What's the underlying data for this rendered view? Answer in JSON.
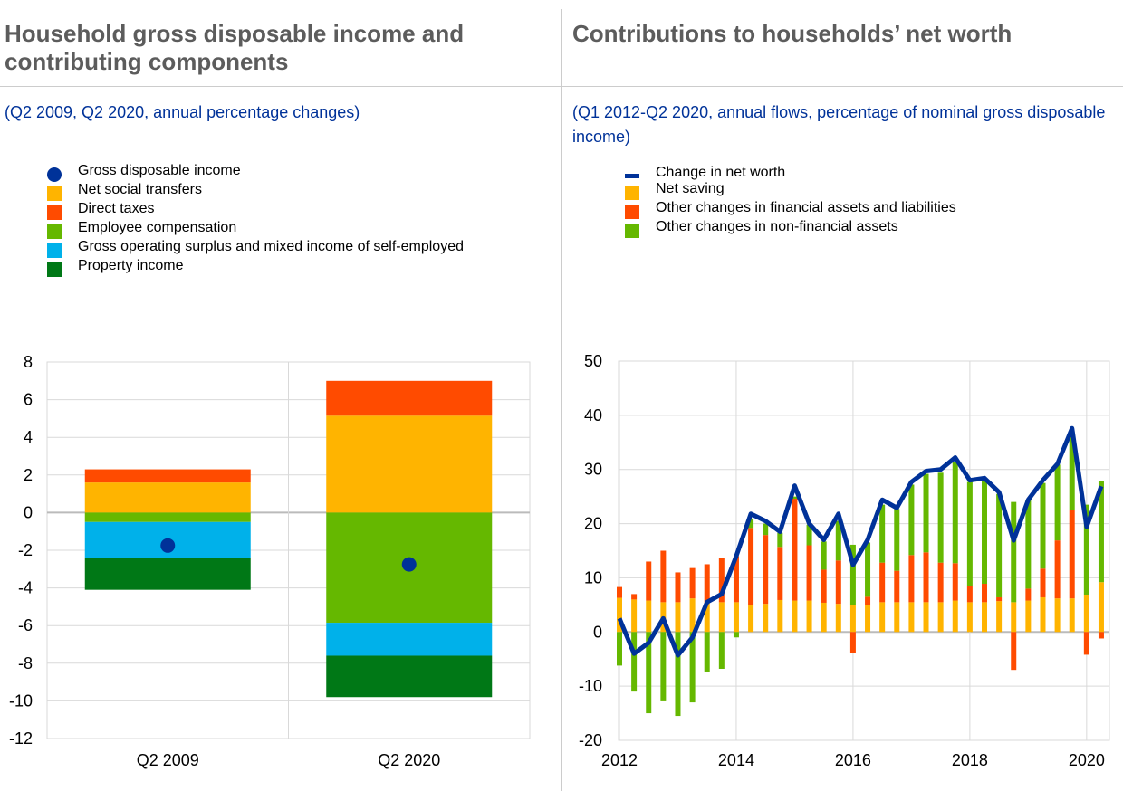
{
  "left": {
    "title": "Household gross disposable income and contributing components",
    "subtitle": "(Q2 2009, Q2 2020, annual percentage changes)"
  },
  "right": {
    "title": "Contributions to households’ net worth",
    "subtitle": "(Q1 2012-Q2 2020, annual flows, percentage of nominal gross disposable income)"
  },
  "chart_data": [
    {
      "type": "bar",
      "stacked": true,
      "categories": [
        "Q2 2009",
        "Q2 2020"
      ],
      "ylim": [
        -12,
        8
      ],
      "yticks": [
        8,
        6,
        4,
        2,
        0,
        -2,
        -4,
        -6,
        -8,
        -10,
        -12
      ],
      "grid": true,
      "legend": "top",
      "series": [
        {
          "name": "Net social transfers",
          "color": "#ffb400",
          "values": [
            1.6,
            5.15
          ]
        },
        {
          "name": "Direct taxes",
          "color": "#ff4b00",
          "values": [
            0.7,
            1.85
          ]
        },
        {
          "name": "Employee compensation",
          "color": "#65b800",
          "values": [
            -0.5,
            -5.85
          ]
        },
        {
          "name": "Gross operating surplus and mixed income of self-employed",
          "color": "#00b1ea",
          "values": [
            -1.9,
            -1.75
          ]
        },
        {
          "name": "Property income",
          "color": "#007816",
          "values": [
            -1.7,
            -2.2
          ]
        }
      ],
      "points": {
        "name": "Gross disposable income",
        "color": "#003299",
        "values": [
          -1.75,
          -2.75
        ]
      }
    },
    {
      "type": "bar",
      "stacked": true,
      "x_start": "2012Q1",
      "x_end": "2020Q2",
      "xticks": [
        "2012",
        "2014",
        "2016",
        "2018",
        "2020"
      ],
      "ylim": [
        -20,
        50
      ],
      "yticks": [
        50,
        40,
        30,
        20,
        10,
        0,
        -10,
        -20
      ],
      "grid": true,
      "legend": "top",
      "series": [
        {
          "name": "Net saving",
          "color": "#ffb400",
          "values": [
            6.3,
            6,
            5.8,
            5.5,
            5.5,
            6.2,
            5.5,
            5.5,
            5.5,
            4.9,
            5.2,
            5.9,
            5.8,
            5.8,
            5.4,
            5.2,
            5,
            5,
            5.5,
            5.5,
            5.5,
            5.5,
            5.5,
            5.8,
            5.5,
            5.5,
            5.7,
            5.5,
            5.8,
            6.4,
            6.2,
            6.2,
            6.9,
            9.2
          ]
        },
        {
          "name": "Other changes in financial assets and liabilities",
          "color": "#ff4b00",
          "values": [
            2,
            1,
            7.2,
            9.5,
            5.5,
            5.6,
            7,
            8.1,
            8.5,
            14.3,
            12.7,
            9.8,
            18.8,
            10.2,
            6.1,
            8,
            -3.8,
            1.5,
            7.3,
            5.8,
            8.7,
            9.2,
            7.3,
            6.9,
            3,
            3.4,
            0.7,
            -7,
            2.2,
            5.3,
            10.7,
            16.4,
            -4.2,
            -1.2
          ]
        },
        {
          "name": "Other changes in non-financial assets",
          "color": "#65b800",
          "values": [
            -6.2,
            -11,
            -15,
            -12.8,
            -15.5,
            -13,
            -7.3,
            -6.8,
            -1,
            1.6,
            2.1,
            2.6,
            0.4,
            3.8,
            5.2,
            7.3,
            11.1,
            10,
            10.7,
            11.4,
            13,
            14.5,
            16.6,
            18.6,
            19.2,
            19.1,
            19.1,
            18.5,
            16.4,
            15.8,
            14,
            13.8,
            16.6,
            18.7
          ]
        }
      ],
      "line": {
        "name": "Change in net worth",
        "color": "#003299",
        "values": [
          2.5,
          -4,
          -2,
          2.5,
          -4.3,
          -1,
          5.5,
          7,
          14,
          21.8,
          20.5,
          18.5,
          27,
          20,
          17,
          21.8,
          12.4,
          17,
          24.4,
          22.9,
          27.7,
          29.7,
          30,
          32.2,
          28,
          28.4,
          25.8,
          16.9,
          24.4,
          28,
          31,
          37.6,
          19.4,
          26.9
        ]
      }
    }
  ]
}
